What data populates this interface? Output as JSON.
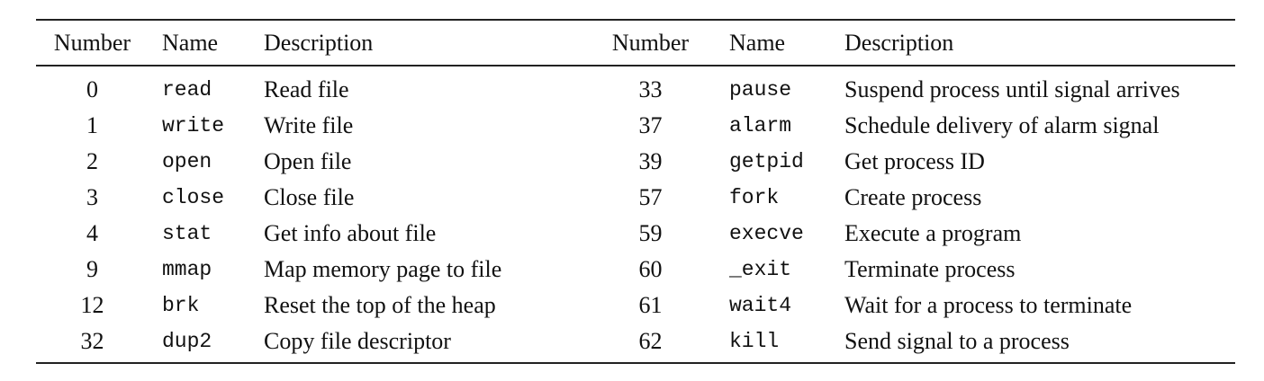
{
  "headers": [
    "Number",
    "Name",
    "Description",
    "Number",
    "Name",
    "Description"
  ],
  "rows": [
    {
      "left": {
        "number": "0",
        "name": "read",
        "description": "Read file"
      },
      "right": {
        "number": "33",
        "name": "pause",
        "description": "Suspend process until signal arrives"
      }
    },
    {
      "left": {
        "number": "1",
        "name": "write",
        "description": "Write file"
      },
      "right": {
        "number": "37",
        "name": "alarm",
        "description": "Schedule delivery of alarm signal"
      }
    },
    {
      "left": {
        "number": "2",
        "name": "open",
        "description": "Open file"
      },
      "right": {
        "number": "39",
        "name": "getpid",
        "description": "Get process ID"
      }
    },
    {
      "left": {
        "number": "3",
        "name": "close",
        "description": "Close file"
      },
      "right": {
        "number": "57",
        "name": "fork",
        "description": "Create process"
      }
    },
    {
      "left": {
        "number": "4",
        "name": "stat",
        "description": "Get info about file"
      },
      "right": {
        "number": "59",
        "name": "execve",
        "description": "Execute a program"
      }
    },
    {
      "left": {
        "number": "9",
        "name": "mmap",
        "description": "Map memory page to file"
      },
      "right": {
        "number": "60",
        "name": "_exit",
        "description": "Terminate process"
      }
    },
    {
      "left": {
        "number": "12",
        "name": "brk",
        "description": "Reset the top of the heap"
      },
      "right": {
        "number": "61",
        "name": "wait4",
        "description": "Wait for a process to terminate"
      }
    },
    {
      "left": {
        "number": "32",
        "name": "dup2",
        "description": "Copy file descriptor"
      },
      "right": {
        "number": "62",
        "name": "kill",
        "description": "Send signal to a process"
      }
    }
  ]
}
